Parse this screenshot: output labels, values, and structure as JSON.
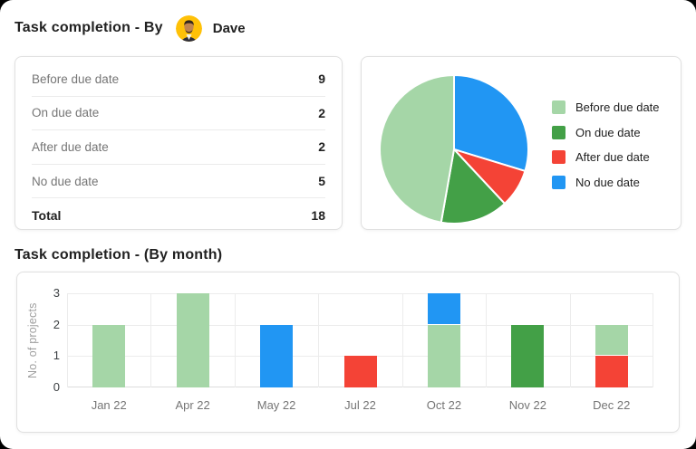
{
  "page": {
    "background": "#ffffff",
    "outer_background": "#000000"
  },
  "header": {
    "title": "Task completion - By",
    "user_name": "Dave",
    "avatar": {
      "icon": "man-portrait-avatar",
      "bg_color": "#FFC107"
    }
  },
  "summary_table": {
    "rows": [
      {
        "label": "Before due date",
        "value": "9"
      },
      {
        "label": "On due date",
        "value": "2"
      },
      {
        "label": "After due date",
        "value": "2"
      },
      {
        "label": "No due date",
        "value": "5"
      }
    ],
    "total": {
      "label": "Total",
      "value": "18"
    }
  },
  "bar_section": {
    "title": "Task completion - (By month)"
  },
  "colors": {
    "before_due_date": "#A5D6A7",
    "on_due_date": "#43A047",
    "after_due_date": "#F44336",
    "no_due_date": "#2196F3"
  },
  "chart_data": [
    {
      "type": "pie",
      "title": "",
      "slices": [
        {
          "label": "No due date",
          "value": 5,
          "color": "#2196F3",
          "start_deg": 0,
          "end_deg": 107
        },
        {
          "label": "After due date",
          "value": 2,
          "color": "#F44336",
          "start_deg": 107,
          "end_deg": 137
        },
        {
          "label": "On due date",
          "value": 2,
          "color": "#43A047",
          "start_deg": 137,
          "end_deg": 190
        },
        {
          "label": "Before due date",
          "value": 9,
          "color": "#A5D6A7",
          "start_deg": 190,
          "end_deg": 360
        }
      ],
      "total": 18,
      "legend": [
        "Before due date",
        "On due date",
        "After due date",
        "No due date"
      ],
      "legend_position": "right",
      "slice_gap_color": "#ffffff"
    },
    {
      "type": "bar",
      "stacked": true,
      "title": "Task completion - (By month)",
      "categories": [
        "Jan 22",
        "Apr 22",
        "May 22",
        "Jul 22",
        "Oct 22",
        "Nov 22",
        "Dec 22"
      ],
      "series": [
        {
          "name": "Before due date",
          "color": "#A5D6A7",
          "values": [
            2,
            3,
            0,
            0,
            2,
            0,
            1
          ]
        },
        {
          "name": "On due date",
          "color": "#43A047",
          "values": [
            0,
            0,
            0,
            0,
            0,
            2,
            0
          ]
        },
        {
          "name": "After due date",
          "color": "#F44336",
          "values": [
            0,
            0,
            0,
            1,
            0,
            0,
            1
          ]
        },
        {
          "name": "No due date",
          "color": "#2196F3",
          "values": [
            0,
            0,
            2,
            0,
            1,
            0,
            0
          ]
        }
      ],
      "stack_order": [
        "After due date",
        "Before due date",
        "On due date",
        "No due date"
      ],
      "xlabel": "",
      "ylabel": "No. of projects",
      "y_ticks": [
        0,
        1,
        2,
        3
      ],
      "ylim": [
        0,
        3
      ],
      "grid": true,
      "legend": "none"
    }
  ]
}
